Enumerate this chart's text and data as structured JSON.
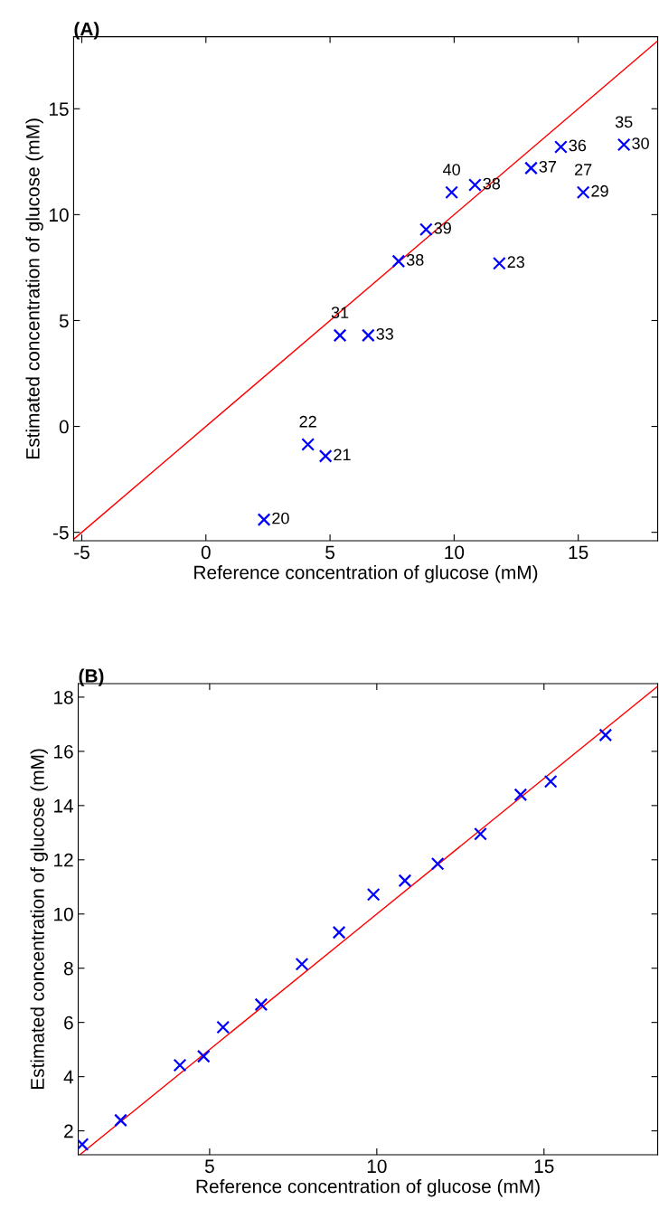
{
  "chart_data": [
    {
      "type": "scatter",
      "title": "(A)",
      "xlabel": "Reference concentration of glucose (mM)",
      "ylabel": "Estimated concentration of glucose (mM)",
      "xlim": [
        -5.33,
        18.2
      ],
      "ylim": [
        -5.4,
        18.4
      ],
      "xticks": [
        -5,
        0,
        5,
        10,
        15
      ],
      "yticks": [
        -5,
        0,
        5,
        10,
        15
      ],
      "grid": false,
      "legend": false,
      "series": [
        {
          "color": "#0000ff",
          "marker": "cross",
          "x": [
            2.34,
            4.11,
            4.82,
            5.4,
            6.54,
            7.76,
            8.87,
            9.9,
            10.84,
            11.82,
            13.1,
            14.3,
            15.2,
            16.84
          ],
          "values": [
            -4.4,
            -0.85,
            -1.4,
            4.3,
            4.3,
            7.8,
            9.3,
            11.05,
            11.4,
            7.7,
            12.2,
            13.2,
            11.05,
            13.3
          ]
        },
        {
          "type": "line",
          "color": "#ff0000",
          "x": [
            -5.33,
            18.2
          ],
          "values": [
            -5.33,
            18.2
          ]
        }
      ],
      "annotations": [
        {
          "text": "20",
          "x": 2.34,
          "y": -4.4
        },
        {
          "text": "22",
          "x": 4.11,
          "y": -0.85
        },
        {
          "text": "21",
          "x": 4.82,
          "y": -1.4
        },
        {
          "text": "31",
          "x": 5.4,
          "y": 4.3
        },
        {
          "text": "33",
          "x": 6.54,
          "y": 4.3
        },
        {
          "text": "38",
          "x": 7.76,
          "y": 7.8
        },
        {
          "text": "39",
          "x": 8.87,
          "y": 9.3
        },
        {
          "text": "40",
          "x": 9.9,
          "y": 11.05
        },
        {
          "text": "38",
          "x": 10.84,
          "y": 11.4
        },
        {
          "text": "23",
          "x": 11.82,
          "y": 7.7
        },
        {
          "text": "37",
          "x": 13.1,
          "y": 12.2
        },
        {
          "text": "36",
          "x": 14.3,
          "y": 13.2
        },
        {
          "text": "29",
          "x": 15.2,
          "y": 11.05
        },
        {
          "text": "30",
          "x": 16.84,
          "y": 13.3
        },
        {
          "text": "27",
          "x": 15.2,
          "y": 11.05
        },
        {
          "text": "35",
          "x": 16.84,
          "y": 13.3
        }
      ]
    },
    {
      "type": "scatter",
      "title": "(B)",
      "xlabel": "Reference concentration of glucose (mM)",
      "ylabel": "Estimated concentration of glucose (mM)",
      "xlim": [
        1.07,
        18.4
      ],
      "ylim": [
        1.12,
        18.5
      ],
      "xticks": [
        5,
        10,
        15
      ],
      "yticks": [
        2,
        4,
        6,
        8,
        10,
        12,
        14,
        16,
        18
      ],
      "grid": false,
      "legend": false,
      "series": [
        {
          "color": "#0000ff",
          "marker": "cross",
          "x": [
            1.19,
            2.34,
            4.11,
            4.82,
            5.4,
            6.54,
            7.76,
            8.87,
            9.9,
            10.84,
            11.82,
            13.1,
            14.3,
            15.2,
            16.84
          ],
          "values": [
            1.5,
            2.39,
            4.42,
            4.75,
            5.82,
            6.66,
            8.15,
            9.32,
            10.72,
            11.23,
            11.85,
            12.95,
            14.4,
            14.89,
            16.6
          ]
        },
        {
          "type": "line",
          "color": "#ff0000",
          "x": [
            1.12,
            18.4
          ],
          "values": [
            1.12,
            18.4
          ]
        }
      ]
    }
  ]
}
